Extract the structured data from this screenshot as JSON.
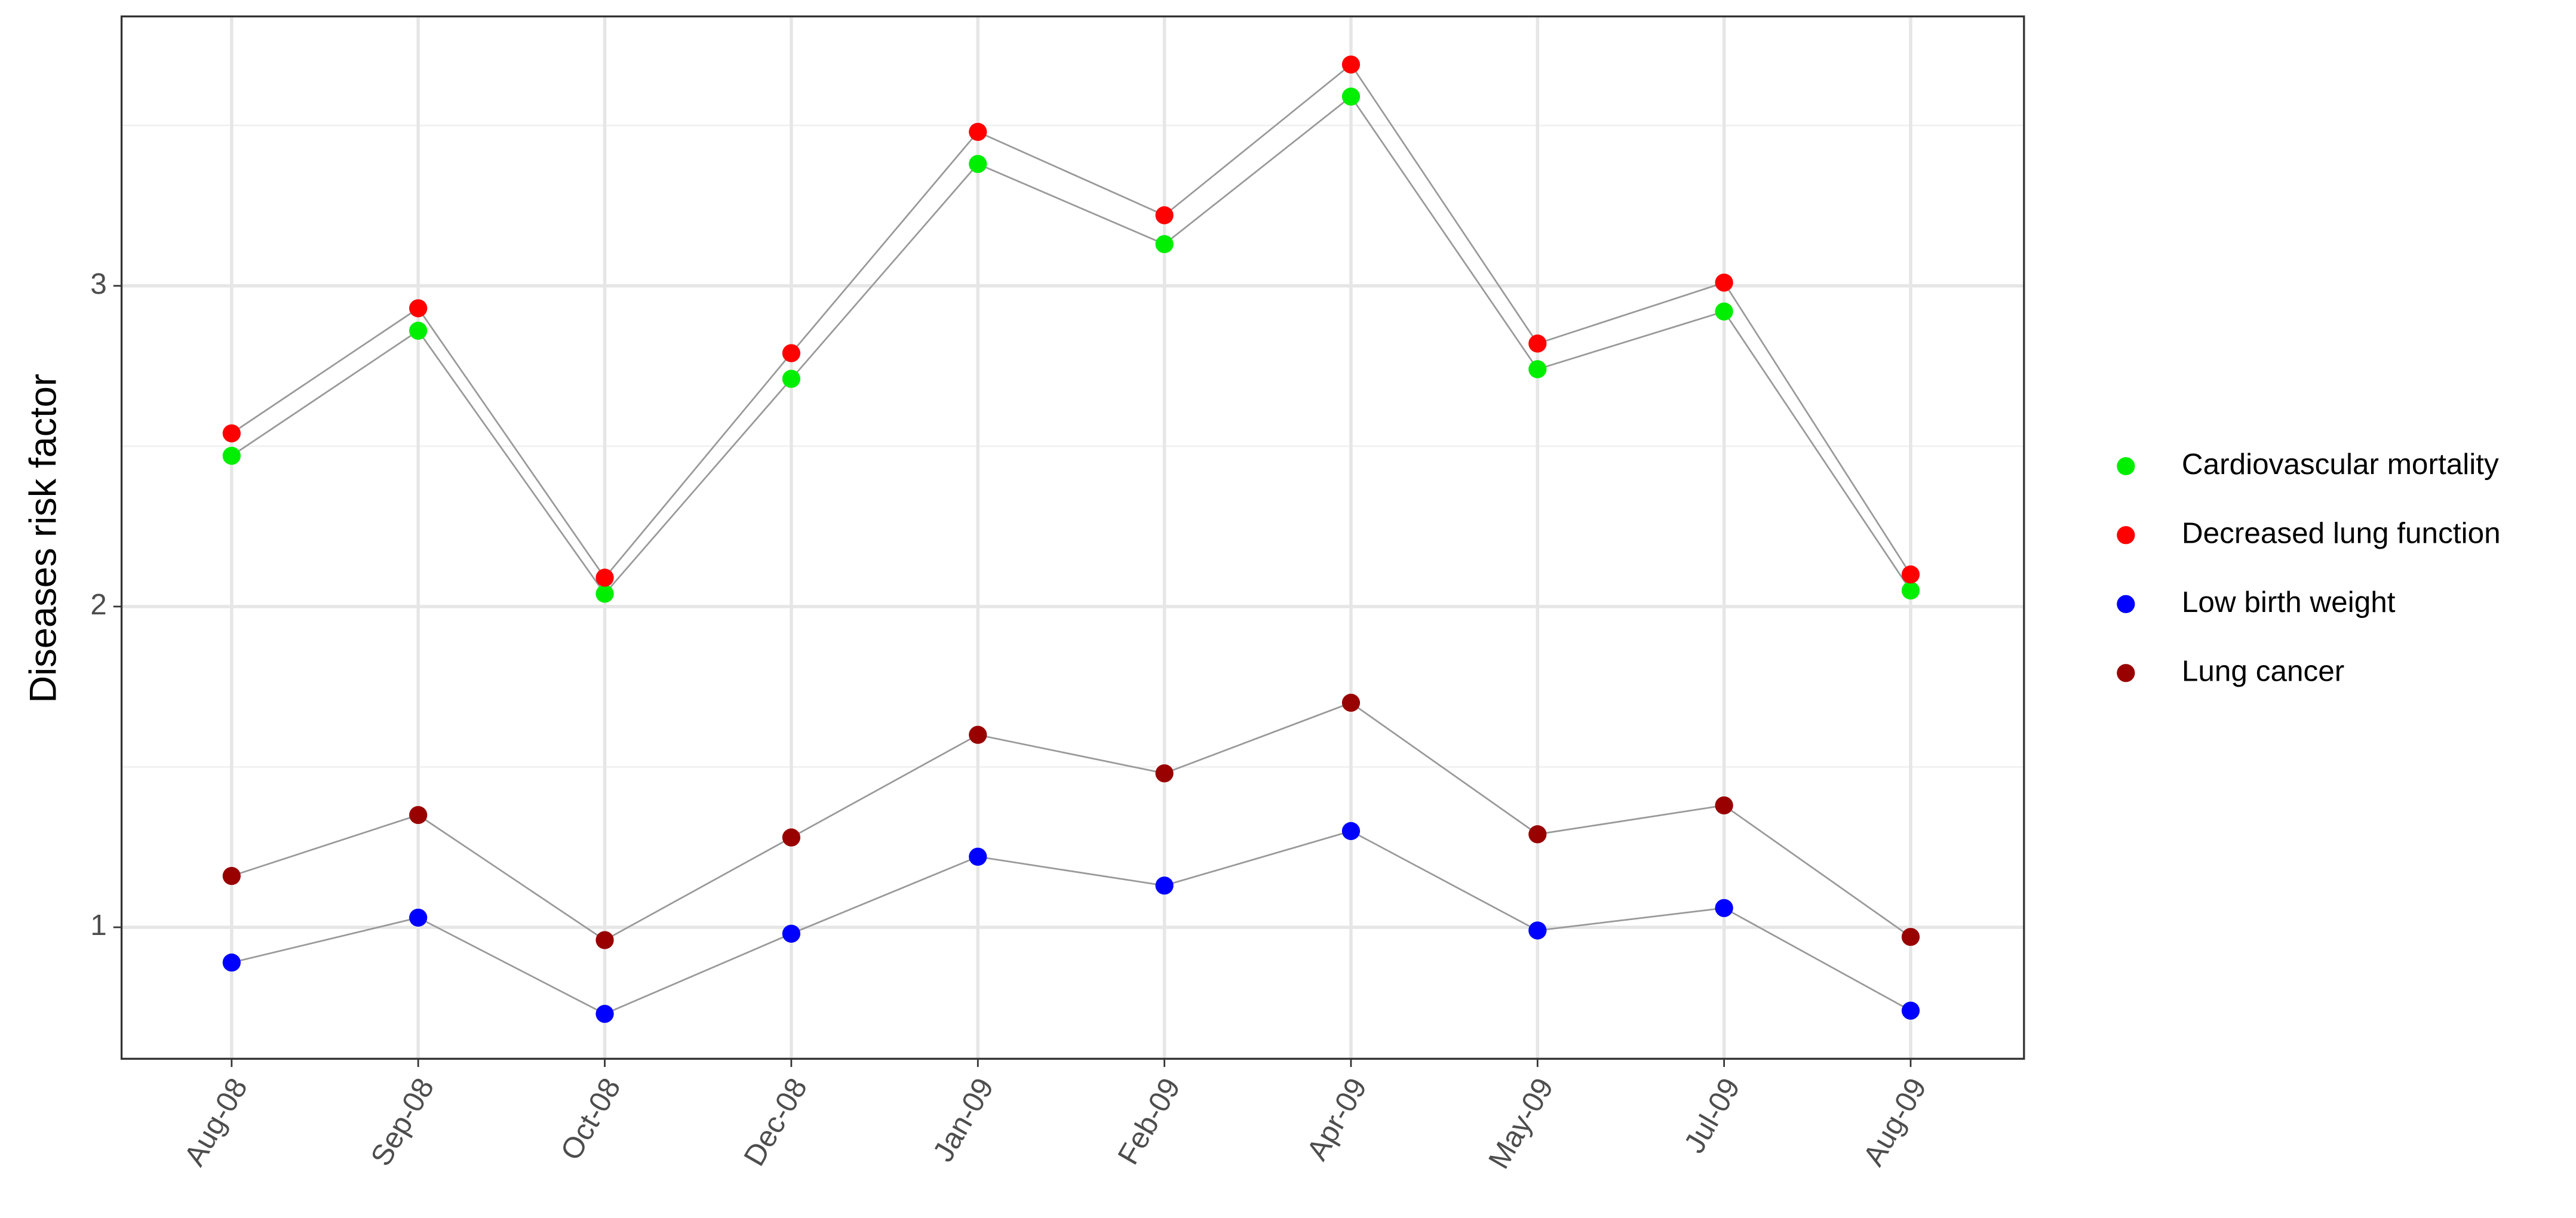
{
  "chart_data": {
    "type": "line",
    "ylabel": "Diseases risk factor",
    "categories": [
      "Aug-08",
      "Sep-08",
      "Oct-08",
      "Dec-08",
      "Jan-09",
      "Feb-09",
      "Apr-09",
      "May-09",
      "Jul-09",
      "Aug-09"
    ],
    "series": [
      {
        "name": "Cardiovascular mortality",
        "color": "#00ee00",
        "values": [
          2.47,
          2.86,
          2.04,
          2.71,
          3.38,
          3.13,
          3.59,
          2.74,
          2.92,
          2.05
        ]
      },
      {
        "name": "Decreased lung function",
        "color": "#ff0000",
        "values": [
          2.54,
          2.93,
          2.09,
          2.79,
          3.48,
          3.22,
          3.69,
          2.82,
          3.01,
          2.1
        ]
      },
      {
        "name": "Low birth weight",
        "color": "#0000ff",
        "values": [
          0.89,
          1.03,
          0.73,
          0.98,
          1.22,
          1.13,
          1.3,
          0.99,
          1.06,
          0.74
        ]
      },
      {
        "name": "Lung cancer",
        "color": "#990000",
        "values": [
          1.16,
          1.35,
          0.96,
          1.28,
          1.6,
          1.48,
          1.7,
          1.29,
          1.38,
          0.97
        ]
      }
    ],
    "line_color": "#999999",
    "ylim": [
      0.59,
      3.84
    ],
    "yticks": [
      1,
      2,
      3
    ],
    "minor_yticks": [
      1.5,
      2.5,
      3.5
    ],
    "grid": true,
    "legend": "right"
  }
}
